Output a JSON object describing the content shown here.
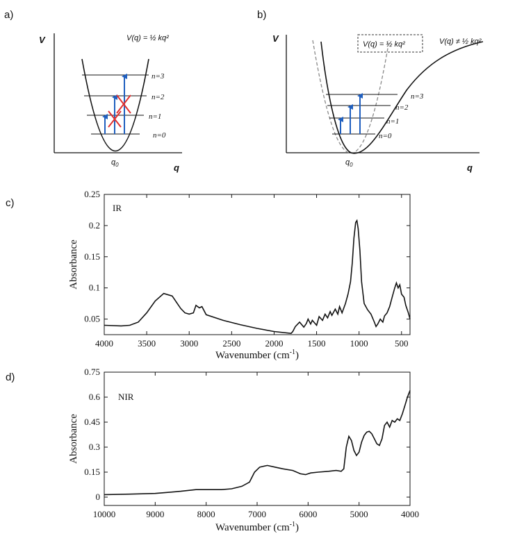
{
  "panels": {
    "a": {
      "label": "a)",
      "v_axis": "V",
      "q_axis": "q",
      "q0": "q",
      "q0_sub": "0",
      "equation": "V(q) = ½ kq²",
      "levels": [
        "n=0",
        "n=1",
        "n=2",
        "n=3"
      ]
    },
    "b": {
      "label": "b)",
      "v_axis": "V",
      "q_axis": "q",
      "q0": "q",
      "q0_sub": "0",
      "equation_harmonic": "V(q) = ½ kq²",
      "equation_anharmonic": "V(q) ≠ ½ kq²",
      "levels": [
        "n=0",
        "n=1",
        "n=2",
        "n=3"
      ]
    }
  },
  "colors": {
    "arrow": "#1f5fbf",
    "cross": "#e03030",
    "curve": "#111111",
    "dashed": "#888888"
  },
  "chart_data": [
    {
      "panel_label": "c)",
      "type": "line",
      "title": "",
      "inline_label": "IR",
      "xlabel": "Wavenumber (cm",
      "xlabel_sup": "-1",
      "xlabel_close": ")",
      "ylabel": "Absorbance",
      "xlim": [
        4000,
        400
      ],
      "ylim": [
        0.025,
        0.25
      ],
      "x_ticks": [
        4000,
        3500,
        3000,
        2500,
        2000,
        1500,
        1000,
        500
      ],
      "y_ticks": [
        0.05,
        0.1,
        0.15,
        0.2,
        0.25
      ],
      "y_tick_labels": [
        "0.05",
        "0.1",
        "0.15",
        "0.2",
        "0.25"
      ],
      "series": [
        {
          "x": [
            4000,
            3800,
            3700,
            3600,
            3500,
            3400,
            3300,
            3200,
            3100,
            3050,
            3000,
            2950,
            2920,
            2880,
            2850,
            2800,
            2600,
            2400,
            2200,
            2000,
            1800,
            1780,
            1750,
            1700,
            1650,
            1620,
            1600,
            1570,
            1550,
            1500,
            1470,
            1430,
            1400,
            1370,
            1340,
            1320,
            1280,
            1250,
            1230,
            1200,
            1160,
            1130,
            1100,
            1080,
            1060,
            1040,
            1025,
            1010,
            990,
            970,
            940,
            900,
            860,
            820,
            800,
            780,
            750,
            720,
            700,
            670,
            640,
            610,
            580,
            560,
            540,
            520,
            500,
            470,
            450,
            420,
            400
          ],
          "y": [
            0.04,
            0.039,
            0.04,
            0.045,
            0.06,
            0.079,
            0.091,
            0.087,
            0.067,
            0.06,
            0.058,
            0.06,
            0.072,
            0.068,
            0.07,
            0.057,
            0.048,
            0.041,
            0.035,
            0.03,
            0.027,
            0.03,
            0.038,
            0.045,
            0.037,
            0.043,
            0.05,
            0.042,
            0.048,
            0.04,
            0.054,
            0.048,
            0.058,
            0.052,
            0.062,
            0.056,
            0.066,
            0.058,
            0.07,
            0.06,
            0.075,
            0.09,
            0.11,
            0.14,
            0.18,
            0.205,
            0.208,
            0.195,
            0.16,
            0.11,
            0.075,
            0.065,
            0.058,
            0.045,
            0.038,
            0.042,
            0.05,
            0.045,
            0.055,
            0.06,
            0.07,
            0.085,
            0.1,
            0.108,
            0.1,
            0.105,
            0.09,
            0.085,
            0.072,
            0.06,
            0.05
          ]
        }
      ]
    },
    {
      "panel_label": "d)",
      "type": "line",
      "title": "",
      "inline_label": "NIR",
      "xlabel": "Wavenumber (cm",
      "xlabel_sup": "-1",
      "xlabel_close": ")",
      "ylabel": "Absorbance",
      "xlim": [
        10000,
        4000
      ],
      "ylim": [
        -0.05,
        0.75
      ],
      "x_ticks": [
        10000,
        9000,
        8000,
        7000,
        6000,
        5000,
        4000
      ],
      "y_ticks": [
        0,
        0.15,
        0.3,
        0.45,
        0.6,
        0.75
      ],
      "y_tick_labels": [
        "0",
        "0.15",
        "0.3",
        "0.45",
        "0.6",
        "0.75"
      ],
      "series": [
        {
          "x": [
            10000,
            9500,
            9000,
            8500,
            8200,
            8000,
            7700,
            7500,
            7300,
            7150,
            7050,
            6950,
            6800,
            6650,
            6500,
            6300,
            6150,
            6050,
            5950,
            5800,
            5600,
            5450,
            5350,
            5300,
            5250,
            5200,
            5150,
            5100,
            5050,
            5000,
            4950,
            4900,
            4850,
            4800,
            4750,
            4700,
            4650,
            4600,
            4550,
            4500,
            4450,
            4400,
            4350,
            4300,
            4250,
            4200,
            4150,
            4100,
            4050,
            4000
          ],
          "y": [
            0.015,
            0.018,
            0.022,
            0.035,
            0.045,
            0.045,
            0.045,
            0.05,
            0.065,
            0.09,
            0.15,
            0.18,
            0.19,
            0.18,
            0.17,
            0.16,
            0.14,
            0.135,
            0.145,
            0.15,
            0.155,
            0.16,
            0.155,
            0.17,
            0.3,
            0.365,
            0.34,
            0.28,
            0.25,
            0.27,
            0.33,
            0.37,
            0.39,
            0.395,
            0.38,
            0.35,
            0.32,
            0.31,
            0.35,
            0.43,
            0.45,
            0.42,
            0.46,
            0.45,
            0.47,
            0.46,
            0.5,
            0.55,
            0.6,
            0.64
          ]
        }
      ]
    }
  ]
}
